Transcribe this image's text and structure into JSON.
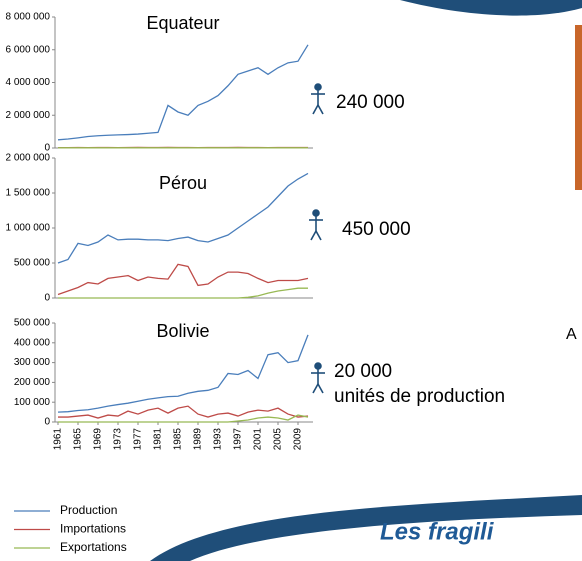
{
  "chart_data": [
    {
      "type": "line",
      "title": "Equateur",
      "annotation": "240 000",
      "x": [
        1961,
        1963,
        1965,
        1967,
        1969,
        1971,
        1973,
        1975,
        1977,
        1979,
        1981,
        1983,
        1985,
        1987,
        1989,
        1991,
        1993,
        1995,
        1997,
        1999,
        2001,
        2003,
        2005,
        2007,
        2009,
        2011
      ],
      "xlim": [
        1960,
        2012
      ],
      "ylim": [
        0,
        8000000
      ],
      "yticks": [
        0,
        {
          "value": 2000000,
          "label": "2 000 000"
        },
        {
          "value": 4000000,
          "label": "4 000 000"
        },
        {
          "value": 6000000,
          "label": "6 000 000"
        },
        {
          "value": 8000000,
          "label": "8 000 000"
        }
      ],
      "series": [
        {
          "color": "#4a7ebb",
          "values": [
            500000,
            550000,
            620000,
            700000,
            750000,
            780000,
            800000,
            820000,
            850000,
            900000,
            950000,
            2600000,
            2200000,
            2000000,
            2600000,
            2850000,
            3200000,
            3800000,
            4500000,
            4700000,
            4900000,
            4500000,
            4900000,
            5200000,
            5300000,
            6300000
          ]
        },
        {
          "color": "#be4b48",
          "values": [
            20000,
            20000,
            30000,
            20000,
            30000,
            30000,
            20000,
            30000,
            40000,
            30000,
            30000,
            40000,
            30000,
            30000,
            20000,
            30000,
            30000,
            30000,
            40000,
            30000,
            30000,
            20000,
            30000,
            30000,
            30000,
            30000
          ]
        },
        {
          "color": "#98b954",
          "values": [
            10000,
            10000,
            10000,
            10000,
            10000,
            10000,
            10000,
            10000,
            10000,
            10000,
            10000,
            10000,
            10000,
            10000,
            10000,
            10000,
            10000,
            10000,
            10000,
            10000,
            10000,
            10000,
            10000,
            10000,
            10000,
            10000
          ]
        }
      ]
    },
    {
      "type": "line",
      "title": "Pérou",
      "annotation": "450 000",
      "x": [
        1961,
        1963,
        1965,
        1967,
        1969,
        1971,
        1973,
        1975,
        1977,
        1979,
        1981,
        1983,
        1985,
        1987,
        1989,
        1991,
        1993,
        1995,
        1997,
        1999,
        2001,
        2003,
        2005,
        2007,
        2009,
        2011
      ],
      "xlim": [
        1960,
        2012
      ],
      "ylim": [
        0,
        2000000
      ],
      "yticks": [
        0,
        {
          "value": 500000,
          "label": "500 000"
        },
        {
          "value": 1000000,
          "label": "1 000 000"
        },
        {
          "value": 1500000,
          "label": "1 500 000"
        },
        {
          "value": 2000000,
          "label": "2 000 000"
        }
      ],
      "series": [
        {
          "color": "#4a7ebb",
          "values": [
            500000,
            550000,
            780000,
            750000,
            800000,
            900000,
            830000,
            840000,
            840000,
            830000,
            830000,
            820000,
            850000,
            870000,
            820000,
            800000,
            850000,
            900000,
            1000000,
            1100000,
            1200000,
            1300000,
            1450000,
            1600000,
            1700000,
            1780000
          ]
        },
        {
          "color": "#be4b48",
          "values": [
            50000,
            100000,
            150000,
            220000,
            200000,
            280000,
            300000,
            320000,
            250000,
            300000,
            280000,
            270000,
            480000,
            450000,
            180000,
            200000,
            300000,
            370000,
            370000,
            350000,
            280000,
            220000,
            250000,
            250000,
            250000,
            280000
          ]
        },
        {
          "color": "#98b954",
          "values": [
            0,
            0,
            0,
            0,
            0,
            0,
            0,
            0,
            0,
            0,
            0,
            0,
            0,
            0,
            0,
            0,
            0,
            0,
            0,
            10000,
            30000,
            70000,
            100000,
            120000,
            140000,
            140000
          ]
        }
      ]
    },
    {
      "type": "line",
      "title": "Bolivie",
      "annotation": "20 000",
      "unit_note": "unités de production",
      "x": [
        1961,
        1963,
        1965,
        1967,
        1969,
        1971,
        1973,
        1975,
        1977,
        1979,
        1981,
        1983,
        1985,
        1987,
        1989,
        1991,
        1993,
        1995,
        1997,
        1999,
        2001,
        2003,
        2005,
        2007,
        2009,
        2011
      ],
      "xlim": [
        1960,
        2012
      ],
      "xticks": [
        1961,
        1965,
        1969,
        1973,
        1977,
        1981,
        1985,
        1989,
        1993,
        1997,
        2001,
        2005,
        2009
      ],
      "ylim": [
        0,
        500000
      ],
      "yticks": [
        0,
        {
          "value": 100000,
          "label": "100 000"
        },
        {
          "value": 200000,
          "label": "200 000"
        },
        {
          "value": 300000,
          "label": "300 000"
        },
        {
          "value": 400000,
          "label": "400 000"
        },
        {
          "value": 500000,
          "label": "500 000"
        }
      ],
      "series": [
        {
          "name": "Production",
          "color": "#4a7ebb",
          "values": [
            50000,
            52000,
            58000,
            62000,
            70000,
            80000,
            88000,
            95000,
            105000,
            115000,
            122000,
            128000,
            130000,
            145000,
            155000,
            160000,
            175000,
            245000,
            240000,
            260000,
            220000,
            340000,
            350000,
            300000,
            310000,
            440000
          ]
        },
        {
          "name": "Importations",
          "color": "#be4b48",
          "values": [
            25000,
            25000,
            30000,
            35000,
            20000,
            35000,
            30000,
            55000,
            40000,
            60000,
            70000,
            45000,
            70000,
            80000,
            40000,
            25000,
            40000,
            45000,
            30000,
            50000,
            60000,
            55000,
            70000,
            40000,
            25000,
            30000
          ]
        },
        {
          "name": "Exportations",
          "color": "#98b954",
          "values": [
            0,
            0,
            0,
            0,
            0,
            0,
            0,
            0,
            0,
            0,
            0,
            0,
            0,
            0,
            0,
            0,
            0,
            0,
            5000,
            10000,
            20000,
            25000,
            20000,
            10000,
            35000,
            25000
          ]
        }
      ]
    }
  ],
  "slide": {
    "side_letter": "A",
    "heading_fragment": "Les fragili"
  }
}
